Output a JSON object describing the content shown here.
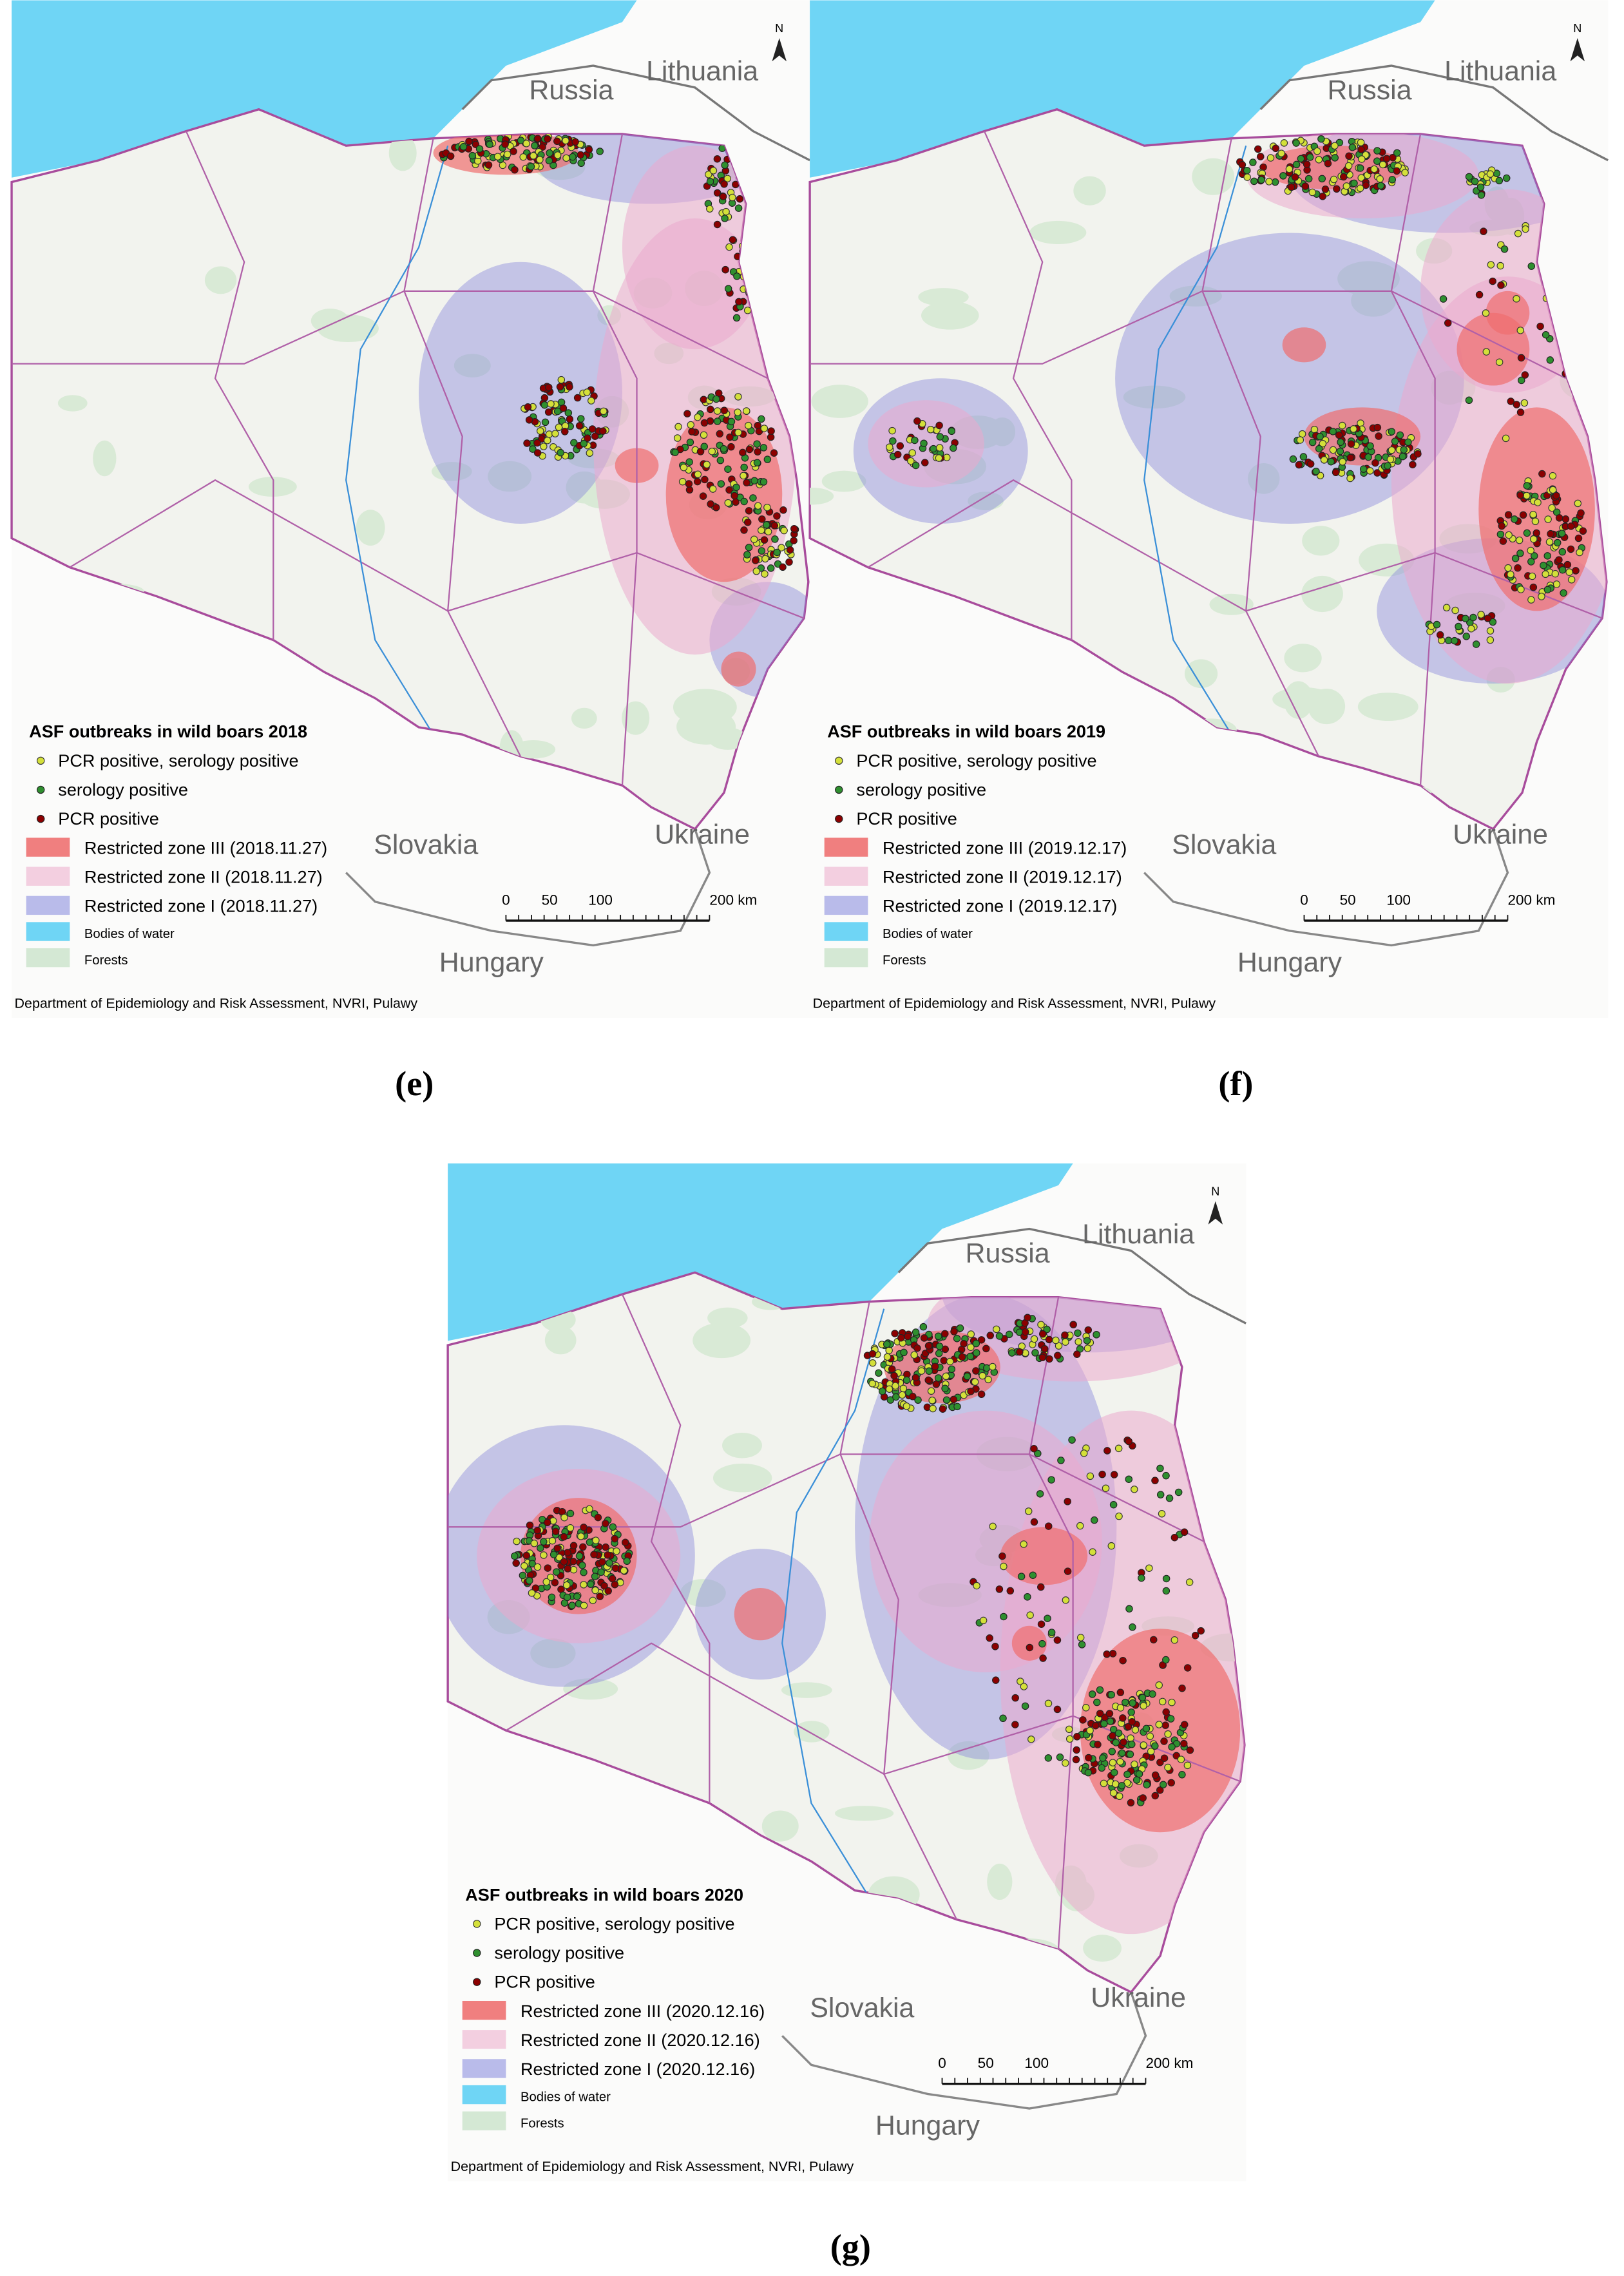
{
  "panels": [
    {
      "caption": "(e)",
      "north": "N",
      "countries": [
        "Russia",
        "Lithuania",
        "Slovakia",
        "Ukraine",
        "Hungary"
      ],
      "legend": {
        "title": "ASF outbreaks in wild boars 2018",
        "items": [
          "PCR positive, serology positive",
          "serology positive",
          "PCR positive",
          "Restricted zone III (2018.11.27)",
          "Restricted zone II (2018.11.27)",
          "Restricted zone I (2018.11.27)",
          "Bodies of water",
          "Forests"
        ]
      },
      "scale": [
        "0",
        "50",
        "100",
        "200 km"
      ],
      "credit": "Department of Epidemiology and Risk Assessment, NVRI, Pulawy"
    },
    {
      "caption": "(f)",
      "north": "N",
      "countries": [
        "Russia",
        "Lithuania",
        "Slovakia",
        "Ukraine",
        "Hungary"
      ],
      "legend": {
        "title": "ASF outbreaks in wild boars 2019",
        "items": [
          "PCR positive, serology positive",
          "serology positive",
          "PCR positive",
          "Restricted zone III (2019.12.17)",
          "Restricted zone II (2019.12.17)",
          "Restricted zone I (2019.12.17)",
          "Bodies of water",
          "Forests"
        ]
      },
      "scale": [
        "0",
        "50",
        "100",
        "200 km"
      ],
      "credit": "Department of Epidemiology and Risk Assessment, NVRI, Pulawy"
    },
    {
      "caption": "(g)",
      "north": "N",
      "countries": [
        "Russia",
        "Lithuania",
        "Slovakia",
        "Ukraine",
        "Hungary"
      ],
      "legend": {
        "title": "ASF outbreaks in wild boars 2020",
        "items": [
          "PCR positive, serology positive",
          "serology positive",
          "PCR positive",
          "Restricted zone III (2020.12.16)",
          "Restricted zone II (2020.12.16)",
          "Restricted zone I (2020.12.16)",
          "Bodies of water",
          "Forests"
        ]
      },
      "scale": [
        "0",
        "50",
        "100",
        "200 km"
      ],
      "credit": "Department of Epidemiology and Risk Assessment, NVRI, Pulawy"
    }
  ]
}
